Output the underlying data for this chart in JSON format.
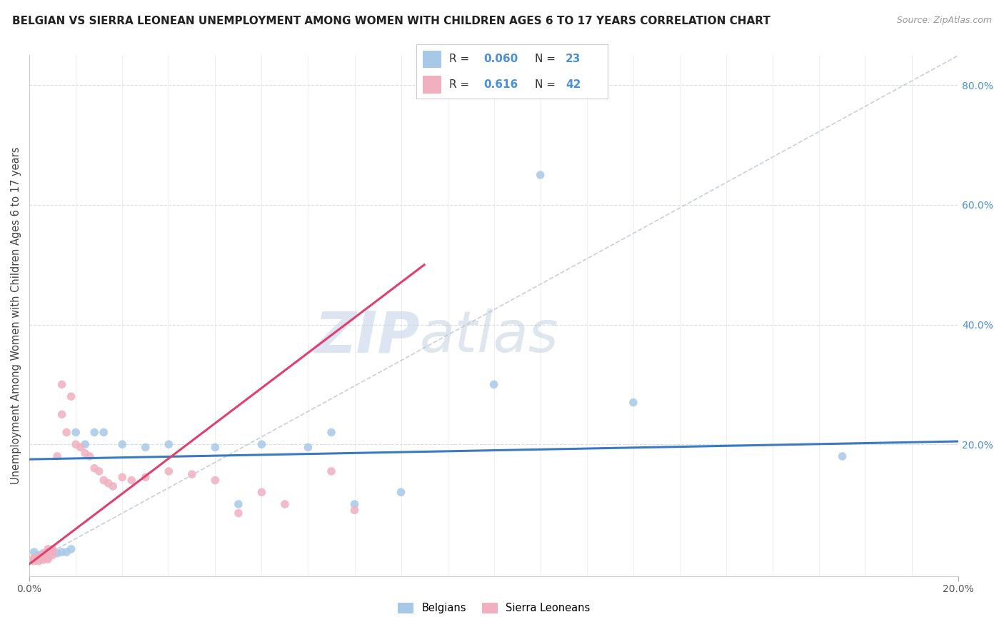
{
  "title": "BELGIAN VS SIERRA LEONEAN UNEMPLOYMENT AMONG WOMEN WITH CHILDREN AGES 6 TO 17 YEARS CORRELATION CHART",
  "source": "Source: ZipAtlas.com",
  "ylabel": "Unemployment Among Women with Children Ages 6 to 17 years",
  "xlim": [
    0.0,
    0.2
  ],
  "ylim": [
    -0.02,
    0.85
  ],
  "blue_color": "#a8c8e8",
  "pink_color": "#f0b0c0",
  "blue_line_color": "#3a7abf",
  "pink_line_color": "#e04070",
  "diagonal_color": "#c8d0dc",
  "watermark_zip": "ZIP",
  "watermark_atlas": "atlas",
  "blue_scatter": [
    [
      0.001,
      0.02
    ],
    [
      0.002,
      0.015
    ],
    [
      0.003,
      0.018
    ],
    [
      0.004,
      0.02
    ],
    [
      0.005,
      0.022
    ],
    [
      0.006,
      0.018
    ],
    [
      0.007,
      0.02
    ],
    [
      0.008,
      0.02
    ],
    [
      0.009,
      0.025
    ],
    [
      0.01,
      0.22
    ],
    [
      0.012,
      0.2
    ],
    [
      0.014,
      0.22
    ],
    [
      0.016,
      0.22
    ],
    [
      0.02,
      0.2
    ],
    [
      0.025,
      0.195
    ],
    [
      0.03,
      0.2
    ],
    [
      0.04,
      0.195
    ],
    [
      0.05,
      0.2
    ],
    [
      0.06,
      0.195
    ],
    [
      0.07,
      0.1
    ],
    [
      0.08,
      0.12
    ],
    [
      0.1,
      0.3
    ],
    [
      0.13,
      0.27
    ],
    [
      0.175,
      0.18
    ],
    [
      0.11,
      0.65
    ],
    [
      0.065,
      0.22
    ],
    [
      0.045,
      0.1
    ]
  ],
  "pink_scatter": [
    [
      0.001,
      0.005
    ],
    [
      0.001,
      0.008
    ],
    [
      0.001,
      0.01
    ],
    [
      0.002,
      0.005
    ],
    [
      0.002,
      0.008
    ],
    [
      0.002,
      0.012
    ],
    [
      0.003,
      0.007
    ],
    [
      0.003,
      0.01
    ],
    [
      0.003,
      0.015
    ],
    [
      0.003,
      0.015
    ],
    [
      0.004,
      0.008
    ],
    [
      0.004,
      0.01
    ],
    [
      0.004,
      0.02
    ],
    [
      0.004,
      0.025
    ],
    [
      0.005,
      0.015
    ],
    [
      0.005,
      0.02
    ],
    [
      0.005,
      0.025
    ],
    [
      0.006,
      0.18
    ],
    [
      0.007,
      0.3
    ],
    [
      0.007,
      0.25
    ],
    [
      0.008,
      0.22
    ],
    [
      0.009,
      0.28
    ],
    [
      0.01,
      0.2
    ],
    [
      0.011,
      0.195
    ],
    [
      0.012,
      0.185
    ],
    [
      0.013,
      0.18
    ],
    [
      0.014,
      0.16
    ],
    [
      0.015,
      0.155
    ],
    [
      0.016,
      0.14
    ],
    [
      0.017,
      0.135
    ],
    [
      0.018,
      0.13
    ],
    [
      0.02,
      0.145
    ],
    [
      0.022,
      0.14
    ],
    [
      0.025,
      0.145
    ],
    [
      0.03,
      0.155
    ],
    [
      0.035,
      0.15
    ],
    [
      0.04,
      0.14
    ],
    [
      0.045,
      0.085
    ],
    [
      0.05,
      0.12
    ],
    [
      0.055,
      0.1
    ],
    [
      0.065,
      0.155
    ],
    [
      0.07,
      0.09
    ]
  ],
  "blue_line_endpoints": [
    [
      0.0,
      0.175
    ],
    [
      0.2,
      0.205
    ]
  ],
  "pink_line_endpoints": [
    [
      0.0,
      0.0
    ],
    [
      0.085,
      0.5
    ]
  ]
}
